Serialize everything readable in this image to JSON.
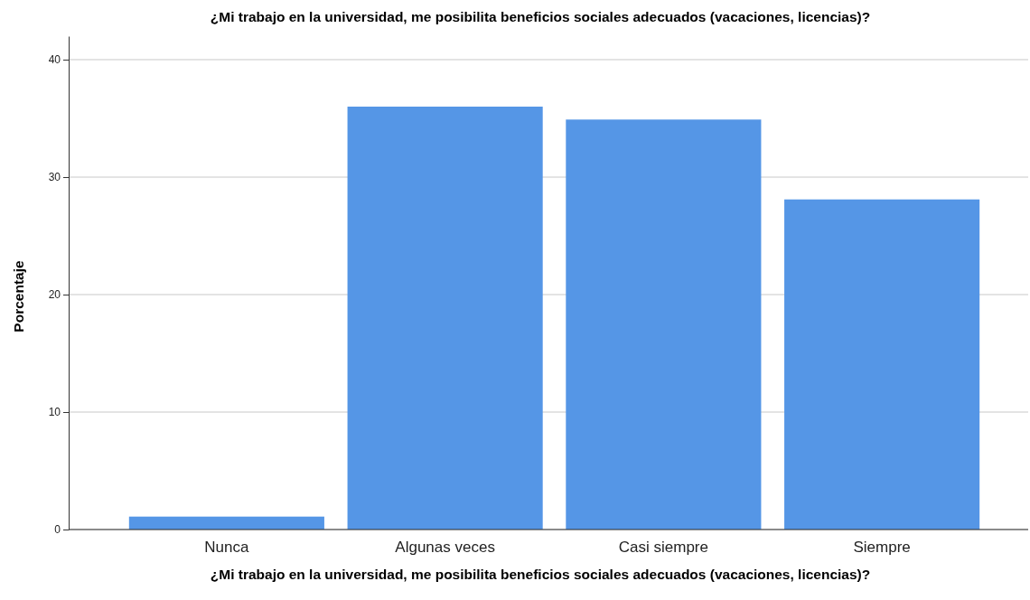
{
  "chart_data": {
    "type": "bar",
    "title": "¿Mi trabajo en la universidad, me posibilita beneficios sociales adecuados (vacaciones, licencias)?",
    "xlabel": "¿Mi trabajo en la universidad, me posibilita beneficios sociales adecuados (vacaciones, licencias)?",
    "ylabel": "Porcentaje",
    "categories": [
      "Nunca",
      "Algunas veces",
      "Casi siempre",
      "Siempre"
    ],
    "values": [
      1.1,
      36.0,
      34.9,
      28.1
    ],
    "color": "#5596e6",
    "ylim": [
      0,
      42
    ],
    "yticks": [
      0,
      10,
      20,
      30,
      40
    ],
    "grid": "y"
  }
}
